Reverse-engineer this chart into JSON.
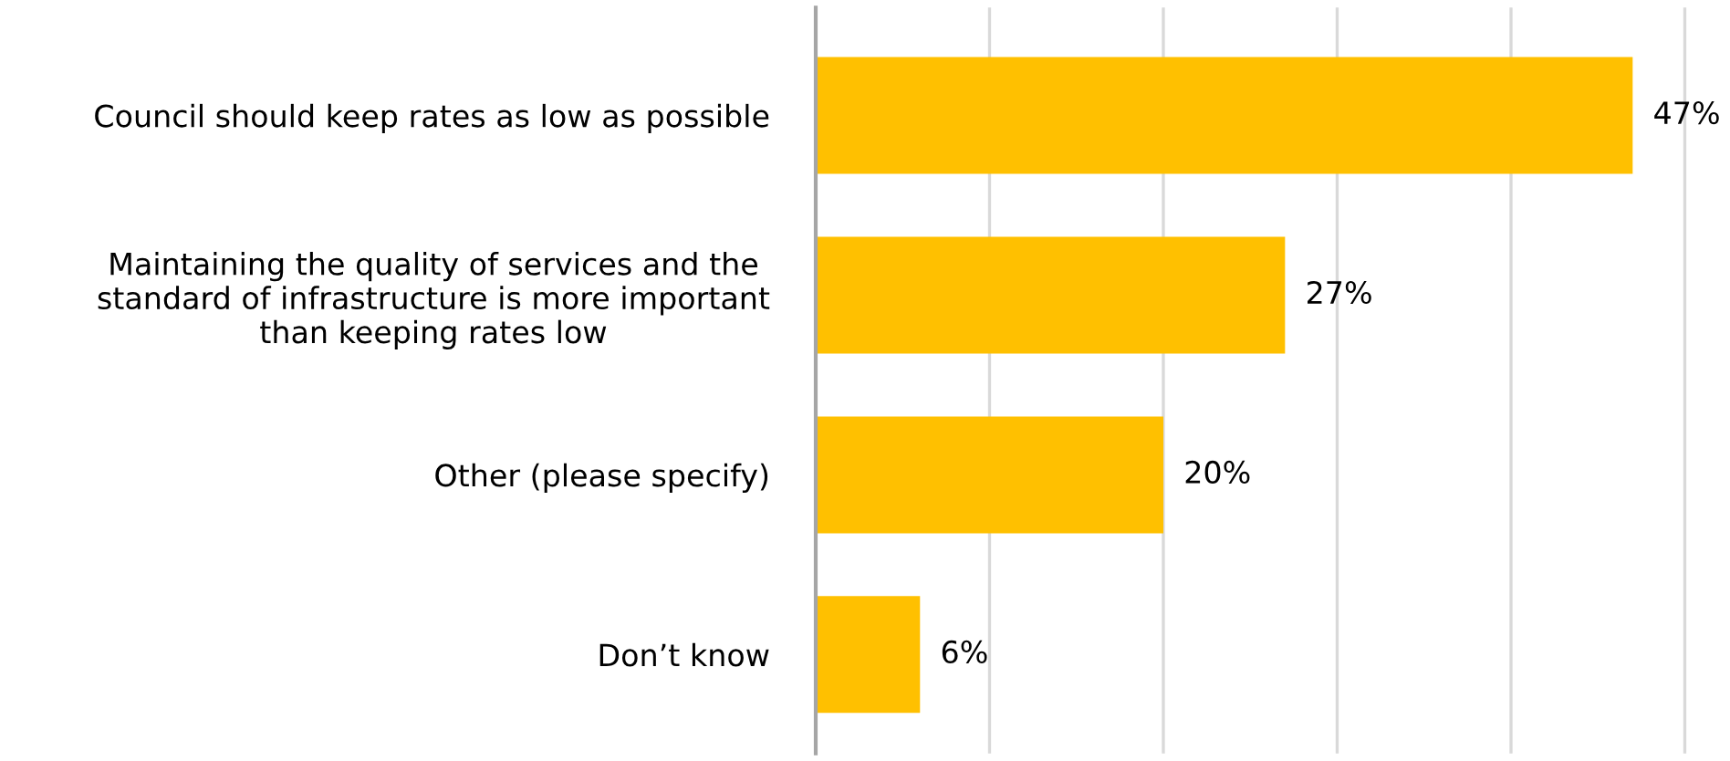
{
  "chart_data": {
    "type": "bar",
    "orientation": "horizontal",
    "categories": [
      "Council should keep rates as low as possible",
      "Maintaining the quality of services and the standard of infrastructure is more important than keeping rates low",
      "Other (please specify)",
      "Don’t know"
    ],
    "values": [
      47,
      27,
      20,
      6
    ],
    "value_labels": [
      "47%",
      "27%",
      "20%",
      "6%"
    ],
    "color": "#ffc000",
    "tick_labels": "y",
    "grid": "x"
  }
}
